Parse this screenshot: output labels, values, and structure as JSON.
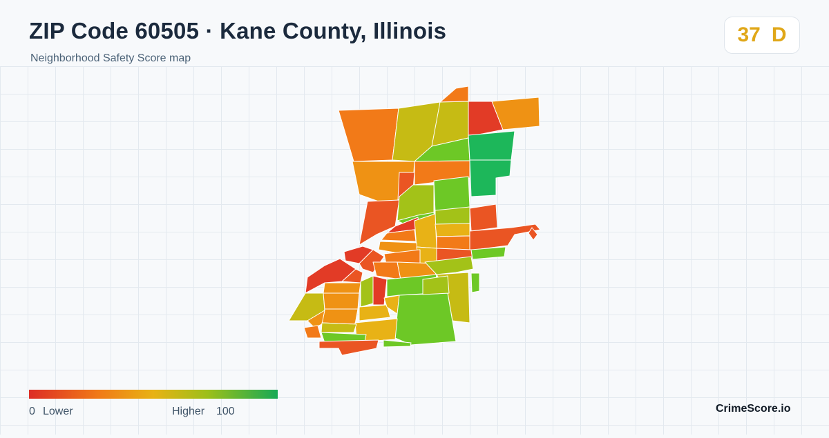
{
  "header": {
    "title": "ZIP Code 60505 · Kane County, Illinois",
    "subtitle": "Neighborhood Safety Score map"
  },
  "score": {
    "value": "37",
    "grade": "D"
  },
  "legend": {
    "min_label": "0",
    "low_label": "Lower",
    "high_label": "Higher",
    "max_label": "100",
    "colors": [
      "#dd2d26",
      "#f07a17",
      "#e8b214",
      "#9cbf1a",
      "#18a955"
    ]
  },
  "brand": "CrimeScore.io",
  "colors": {
    "red": "#e23b26",
    "red_orange": "#ea5523",
    "orange": "#f27a18",
    "orange_amber": "#ef9214",
    "amber": "#e8b216",
    "olive": "#c6bb14",
    "yellow_green": "#a3c218",
    "green": "#6dc826",
    "teal_green": "#1db75a",
    "score_color": "#e0a718"
  }
}
